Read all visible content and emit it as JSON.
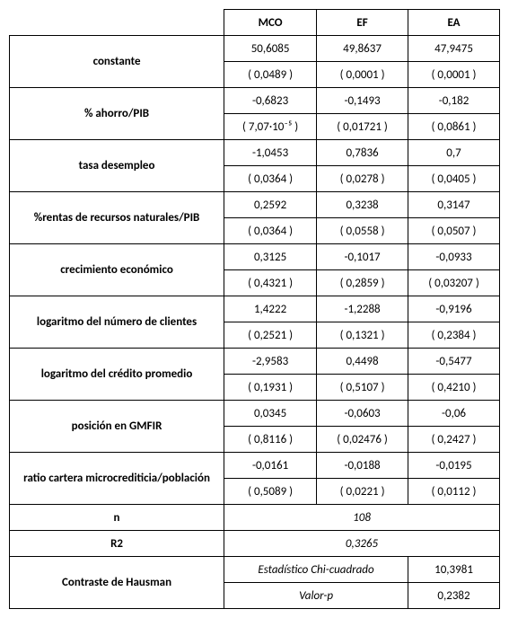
{
  "headers": {
    "c1": "MCO",
    "c2": "EF",
    "c3": "EA"
  },
  "rows": [
    {
      "label": "constante",
      "v": [
        "50,6085",
        "49,8637",
        "47,9475"
      ],
      "p": [
        "( 0,0489 )",
        "( 0,0001 )",
        "( 0,0001 )"
      ]
    },
    {
      "label": "% ahorro/PIB",
      "v": [
        "-0,6823",
        "-0,1493",
        "-0,182"
      ],
      "p": [
        "( 7,07·10⁻⁵ )",
        "( 0,01721 )",
        "( 0,0861 )"
      ]
    },
    {
      "label": "tasa desempleo",
      "v": [
        "-1,0453",
        "0,7836",
        "0,7"
      ],
      "p": [
        "( 0,0364 )",
        "( 0,0278 )",
        "( 0,0405 )"
      ]
    },
    {
      "label": "%rentas de recursos naturales/PIB",
      "v": [
        "0,2592",
        "0,3238",
        "0,3147"
      ],
      "p": [
        "( 0,0364 )",
        "( 0,0558 )",
        "( 0,0507 )"
      ]
    },
    {
      "label": "crecimiento económico",
      "v": [
        "0,3125",
        "-0,1017",
        "-0,0933"
      ],
      "p": [
        "( 0,4321 )",
        "( 0,2859 )",
        "( 0,03207 )"
      ]
    },
    {
      "label": "logaritmo del número de clientes",
      "v": [
        "1,4222",
        "-1,2288",
        "-0,9196"
      ],
      "p": [
        "( 0,2521 )",
        "( 0,1321 )",
        "( 0,2384 )"
      ]
    },
    {
      "label": "logaritmo del crédito promedio",
      "v": [
        "-2,9583",
        "0,4498",
        "-0,5477"
      ],
      "p": [
        "( 0,1931 )",
        "( 0,5107 )",
        "( 0,4210 )"
      ]
    },
    {
      "label": "posición en GMFIR",
      "v": [
        "0,0345",
        "-0,0603",
        "-0,06"
      ],
      "p": [
        "( 0,8116 )",
        "( 0,02476 )",
        "( 0,2427 )"
      ]
    },
    {
      "label": "ratio cartera microcrediticia/población",
      "v": [
        "-0,0161",
        "-0,0188",
        "-0,0195"
      ],
      "p": [
        "( 0,5089 )",
        "( 0,0221 )",
        "( 0,0112 )"
      ]
    }
  ],
  "n": {
    "label": "n",
    "value": "108"
  },
  "r2": {
    "label": "R2",
    "value": "0,3265"
  },
  "hausman": {
    "label": "Contraste  de Hausman",
    "stat_label": "Estadístico Chi-cuadrado",
    "stat_value": "10,3981",
    "p_label": "Valor-p",
    "p_value": "0,2382"
  }
}
